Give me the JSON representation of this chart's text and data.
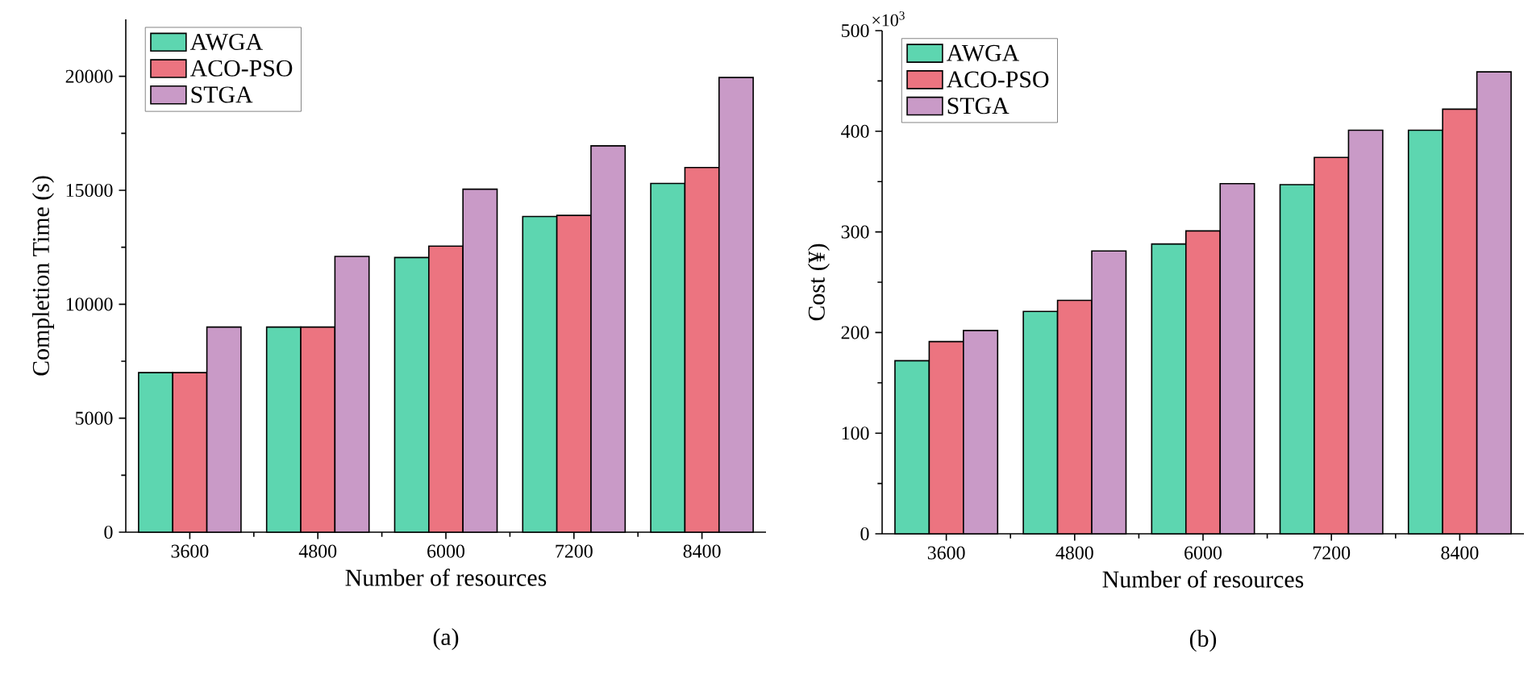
{
  "chart_data": [
    {
      "type": "bar",
      "title": "(a)",
      "xlabel": "Number of resources",
      "ylabel": "Completion Time (s)",
      "categories": [
        "3600",
        "4800",
        "6000",
        "7200",
        "8400"
      ],
      "series": [
        {
          "name": "AWGA",
          "color": "#5dd6b0",
          "values": [
            7000,
            9000,
            12050,
            13850,
            15300
          ]
        },
        {
          "name": "ACO-PSO",
          "color": "#ec7480",
          "values": [
            7000,
            9000,
            12550,
            13900,
            16000
          ]
        },
        {
          "name": "STGA",
          "color": "#c99ac7",
          "values": [
            9000,
            12100,
            15050,
            16950,
            19950
          ]
        }
      ],
      "ylim": [
        0,
        22500
      ],
      "yticks": [
        0,
        5000,
        10000,
        15000,
        20000
      ],
      "legend": "top left"
    },
    {
      "type": "bar",
      "title": "(b)",
      "xlabel": "Number of resources",
      "ylabel": "Cost (¥)",
      "annotations": [
        "×10$^{3}$"
      ],
      "categories": [
        "3600",
        "4800",
        "6000",
        "7200",
        "8400"
      ],
      "series": [
        {
          "name": "AWGA",
          "color": "#5dd6b0",
          "values": [
            172,
            221,
            288,
            347,
            401
          ]
        },
        {
          "name": "ACO-PSO",
          "color": "#ec7480",
          "values": [
            191,
            232,
            301,
            374,
            422
          ]
        },
        {
          "name": "STGA",
          "color": "#c99ac7",
          "values": [
            202,
            281,
            348,
            401,
            459
          ]
        }
      ],
      "ylim": [
        0,
        500
      ],
      "yticks": [
        0,
        100,
        200,
        300,
        400,
        500
      ],
      "legend": "top left"
    }
  ]
}
